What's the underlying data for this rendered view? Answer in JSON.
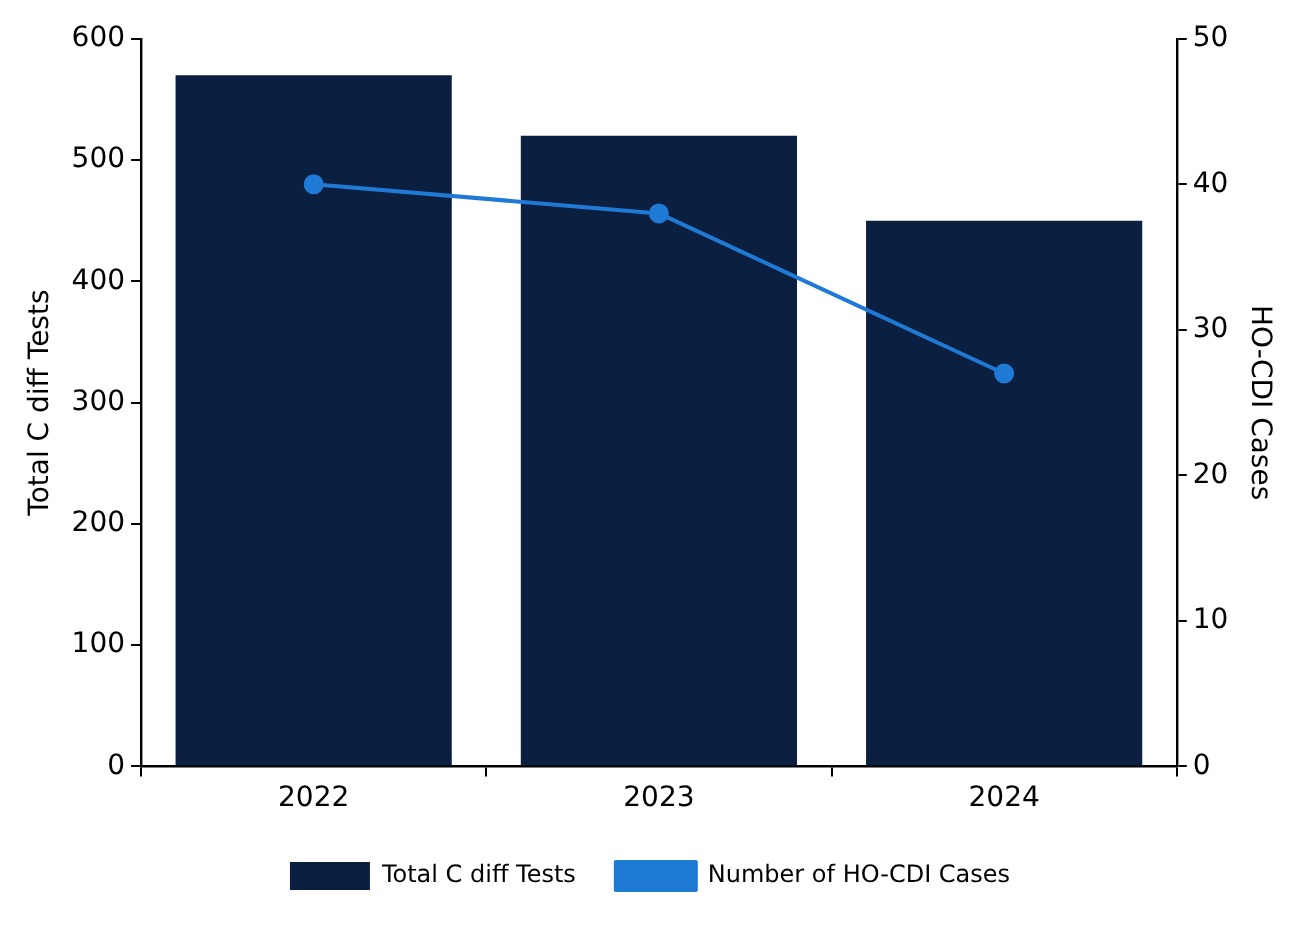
{
  "chart_data": {
    "type": "bar",
    "categories": [
      "2022",
      "2023",
      "2024"
    ],
    "ylabel": "Total C diff Tests",
    "y2label": "HO-CDI Cases",
    "ylim": [
      0,
      600
    ],
    "yticks": [
      0,
      100,
      200,
      300,
      400,
      500,
      600
    ],
    "y2lim": [
      0,
      50
    ],
    "y2ticks": [
      0,
      10,
      20,
      30,
      40,
      50
    ],
    "legend": "bottom",
    "marker": "circle",
    "series": [
      {
        "name": "Total C diff Tests",
        "color": "#0b1f40",
        "values": [
          570,
          520,
          450
        ]
      },
      {
        "name": "Number of HO-CDI Cases",
        "type": "line",
        "axis": "y2",
        "color": "#1f7ad6",
        "values": [
          40,
          38,
          27
        ]
      }
    ]
  }
}
